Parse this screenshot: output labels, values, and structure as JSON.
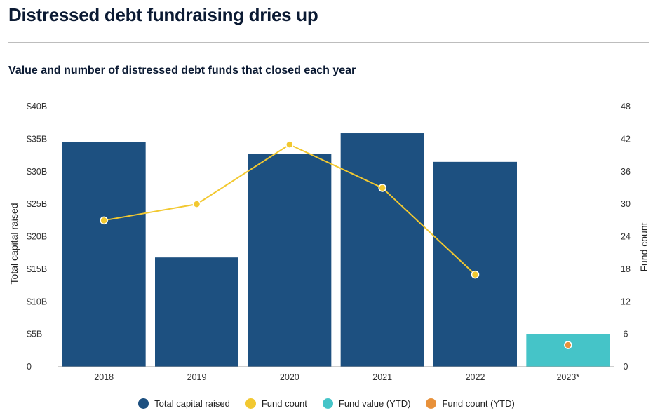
{
  "header": {
    "title": "Distressed debt fundraising dries up",
    "subtitle": "Value and number of distressed debt funds that closed  each year"
  },
  "colors": {
    "total_capital": "#1d5080",
    "fund_count": "#f2c830",
    "fund_value_ytd": "#45c4c8",
    "fund_count_ytd": "#e8913a"
  },
  "legend": [
    {
      "label": "Total capital raised",
      "color_key": "total_capital"
    },
    {
      "label": "Fund count",
      "color_key": "fund_count"
    },
    {
      "label": "Fund value (YTD)",
      "color_key": "fund_value_ytd"
    },
    {
      "label": "Fund count (YTD)",
      "color_key": "fund_count_ytd"
    }
  ],
  "chart_data": {
    "type": "bar",
    "categories": [
      "2018",
      "2019",
      "2020",
      "2021",
      "2022",
      "2023*"
    ],
    "series": [
      {
        "name": "Total capital raised",
        "axis": "left",
        "kind": "bar",
        "color_key": "total_capital",
        "values": [
          34.6,
          16.8,
          32.7,
          35.9,
          31.5,
          null
        ]
      },
      {
        "name": "Fund value (YTD)",
        "axis": "left",
        "kind": "bar",
        "color_key": "fund_value_ytd",
        "values": [
          null,
          null,
          null,
          null,
          null,
          5.0
        ]
      },
      {
        "name": "Fund count",
        "axis": "right",
        "kind": "line",
        "color_key": "fund_count",
        "values": [
          27,
          30,
          41,
          33,
          17,
          null
        ]
      },
      {
        "name": "Fund count (YTD)",
        "axis": "right",
        "kind": "point",
        "color_key": "fund_count_ytd",
        "values": [
          null,
          null,
          null,
          null,
          null,
          4
        ]
      }
    ],
    "ylabel": "Total capital raised",
    "y2label": "Fund count",
    "ylim": [
      0,
      40
    ],
    "y2lim": [
      0,
      48
    ],
    "yticks": [
      "0",
      "$5B",
      "$10B",
      "$15B",
      "$20B",
      "$25B",
      "$30B",
      "$35B",
      "$40B"
    ],
    "y2ticks": [
      "0",
      "6",
      "12",
      "18",
      "24",
      "30",
      "36",
      "42",
      "48"
    ],
    "grid": false,
    "legend_position": "bottom"
  }
}
